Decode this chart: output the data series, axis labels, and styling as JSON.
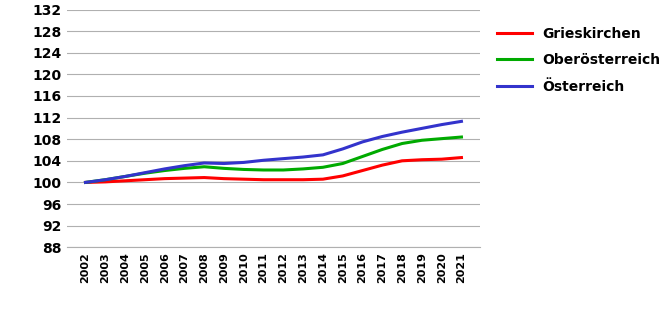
{
  "years": [
    2002,
    2003,
    2004,
    2005,
    2006,
    2007,
    2008,
    2009,
    2010,
    2011,
    2012,
    2013,
    2014,
    2015,
    2016,
    2017,
    2018,
    2019,
    2020,
    2021
  ],
  "grieskirchen": [
    100.0,
    100.1,
    100.3,
    100.5,
    100.7,
    100.8,
    100.9,
    100.7,
    100.6,
    100.5,
    100.5,
    100.5,
    100.6,
    101.2,
    102.2,
    103.2,
    104.0,
    104.2,
    104.3,
    104.6
  ],
  "oberoesterreich": [
    100.0,
    100.5,
    101.1,
    101.7,
    102.2,
    102.6,
    102.9,
    102.6,
    102.4,
    102.3,
    102.3,
    102.5,
    102.8,
    103.5,
    104.8,
    106.1,
    107.2,
    107.8,
    108.1,
    108.4
  ],
  "oesterreich": [
    100.0,
    100.5,
    101.1,
    101.8,
    102.5,
    103.1,
    103.6,
    103.5,
    103.7,
    104.1,
    104.4,
    104.7,
    105.1,
    106.2,
    107.5,
    108.5,
    109.3,
    110.0,
    110.7,
    111.3
  ],
  "line_colors": {
    "grieskirchen": "#ff0000",
    "oberoesterreich": "#00aa00",
    "oesterreich": "#3333cc"
  },
  "legend_labels": [
    "Grieskirchen",
    "Oberösterreich",
    "Österreich"
  ],
  "ylim": [
    88,
    132
  ],
  "yticks": [
    88,
    92,
    96,
    100,
    104,
    108,
    112,
    116,
    120,
    124,
    128,
    132
  ],
  "line_width": 2.2,
  "background_color": "#ffffff",
  "grid_color": "#b0b0b0",
  "ytick_fontsize": 10,
  "xtick_fontsize": 8,
  "legend_fontsize": 10
}
